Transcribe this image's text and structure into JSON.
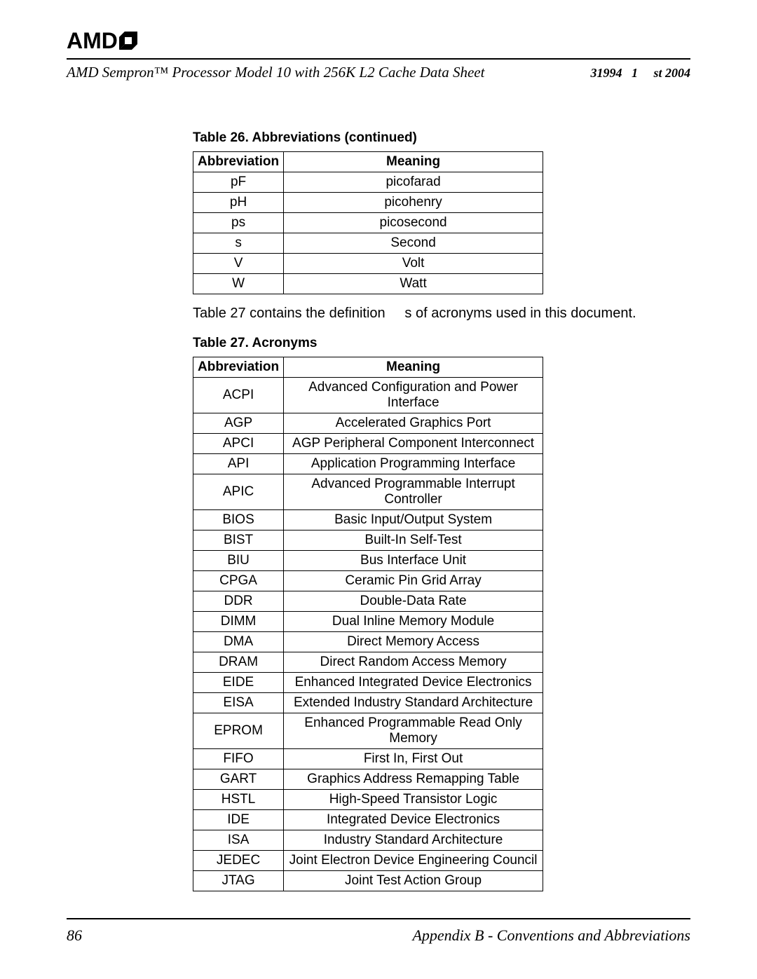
{
  "header": {
    "logo_text": "AMD",
    "doc_title": "AMD Sempron™ Processor Model 10 with 256K L2 Cache Data Sheet",
    "doc_meta": "31994   1     st 2004"
  },
  "table26": {
    "caption": "Table 26.   Abbreviations (continued)",
    "columns": [
      "Abbreviation",
      "Meaning"
    ],
    "rows": [
      [
        "pF",
        "picofarad"
      ],
      [
        "pH",
        "picohenry"
      ],
      [
        "ps",
        "picosecond"
      ],
      [
        "s",
        "Second"
      ],
      [
        "V",
        "Volt"
      ],
      [
        "W",
        "Watt"
      ]
    ]
  },
  "paragraph": "Table 27 contains the definition     s of acronyms used in this document.",
  "table27": {
    "caption": "Table 27.   Acronyms",
    "columns": [
      "Abbreviation",
      "Meaning"
    ],
    "rows": [
      [
        "ACPI",
        "Advanced Configuration and Power Interface"
      ],
      [
        "AGP",
        "Accelerated Graphics Port"
      ],
      [
        "APCI",
        "AGP Peripheral Component Interconnect"
      ],
      [
        "API",
        "Application Programming Interface"
      ],
      [
        "APIC",
        "Advanced Programmable Interrupt Controller"
      ],
      [
        "BIOS",
        "Basic Input/Output System"
      ],
      [
        "BIST",
        "Built-In Self-Test"
      ],
      [
        "BIU",
        "Bus Interface Unit"
      ],
      [
        "CPGA",
        "Ceramic Pin Grid Array"
      ],
      [
        "DDR",
        "Double-Data Rate"
      ],
      [
        "DIMM",
        "Dual Inline Memory Module"
      ],
      [
        "DMA",
        "Direct Memory Access"
      ],
      [
        "DRAM",
        "Direct Random Access Memory"
      ],
      [
        "EIDE",
        "Enhanced Integrated Device Electronics"
      ],
      [
        "EISA",
        "Extended Industry Standard Architecture"
      ],
      [
        "EPROM",
        "Enhanced Programmable Read Only Memory"
      ],
      [
        "FIFO",
        "First In, First Out"
      ],
      [
        "GART",
        "Graphics Address Remapping Table"
      ],
      [
        "HSTL",
        "High-Speed Transistor Logic"
      ],
      [
        "IDE",
        "Integrated Device Electronics"
      ],
      [
        "ISA",
        "Industry Standard Architecture"
      ],
      [
        "JEDEC",
        "Joint Electron Device Engineering Council"
      ],
      [
        "JTAG",
        "Joint Test Action Group"
      ]
    ]
  },
  "footer": {
    "page_num": "86",
    "appendix": "Appendix B - Conventions and Abbreviations"
  }
}
